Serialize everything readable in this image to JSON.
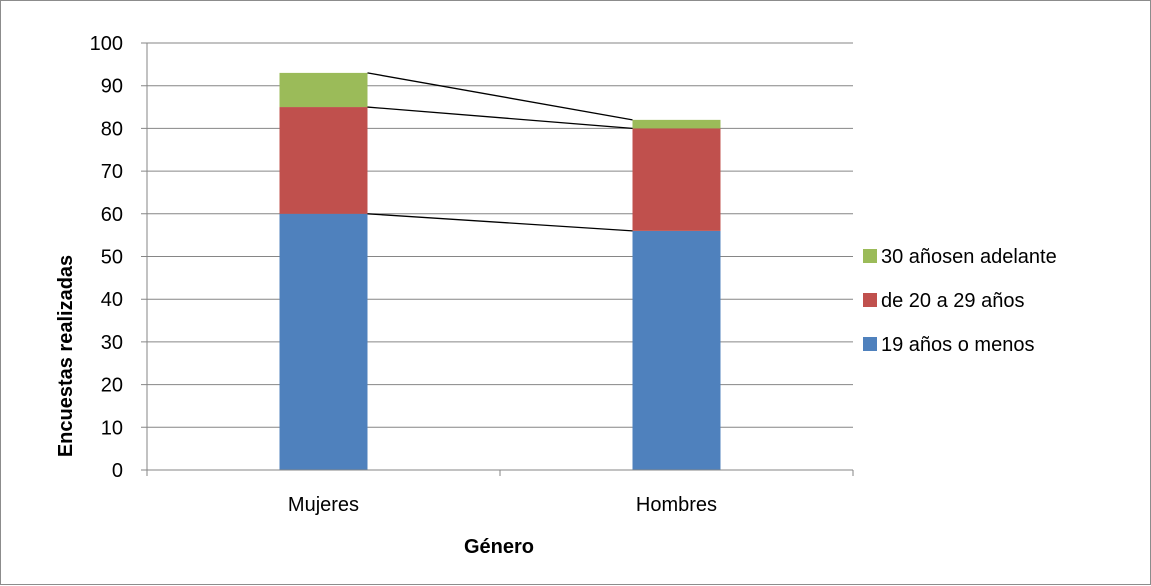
{
  "chart_data": {
    "type": "bar",
    "stacked": true,
    "categories": [
      "Mujeres",
      "Hombres"
    ],
    "series": [
      {
        "name": "19 años o menos",
        "values": [
          60,
          56
        ],
        "color": "#4f81bd"
      },
      {
        "name": "de 20 a 29 años",
        "values": [
          25,
          24
        ],
        "color": "#c0504d"
      },
      {
        "name": "30 añosen adelante",
        "values": [
          8,
          2
        ],
        "color": "#9bbb59"
      }
    ],
    "title": "",
    "xlabel": "Género",
    "ylabel": "Encuestas realizadas",
    "ylim": [
      0,
      100
    ],
    "yticks": [
      "0",
      "10",
      "20",
      "30",
      "40",
      "50",
      "60",
      "70",
      "80",
      "90",
      "100"
    ],
    "grid": true,
    "series_lines": true,
    "legend_position": "right"
  }
}
